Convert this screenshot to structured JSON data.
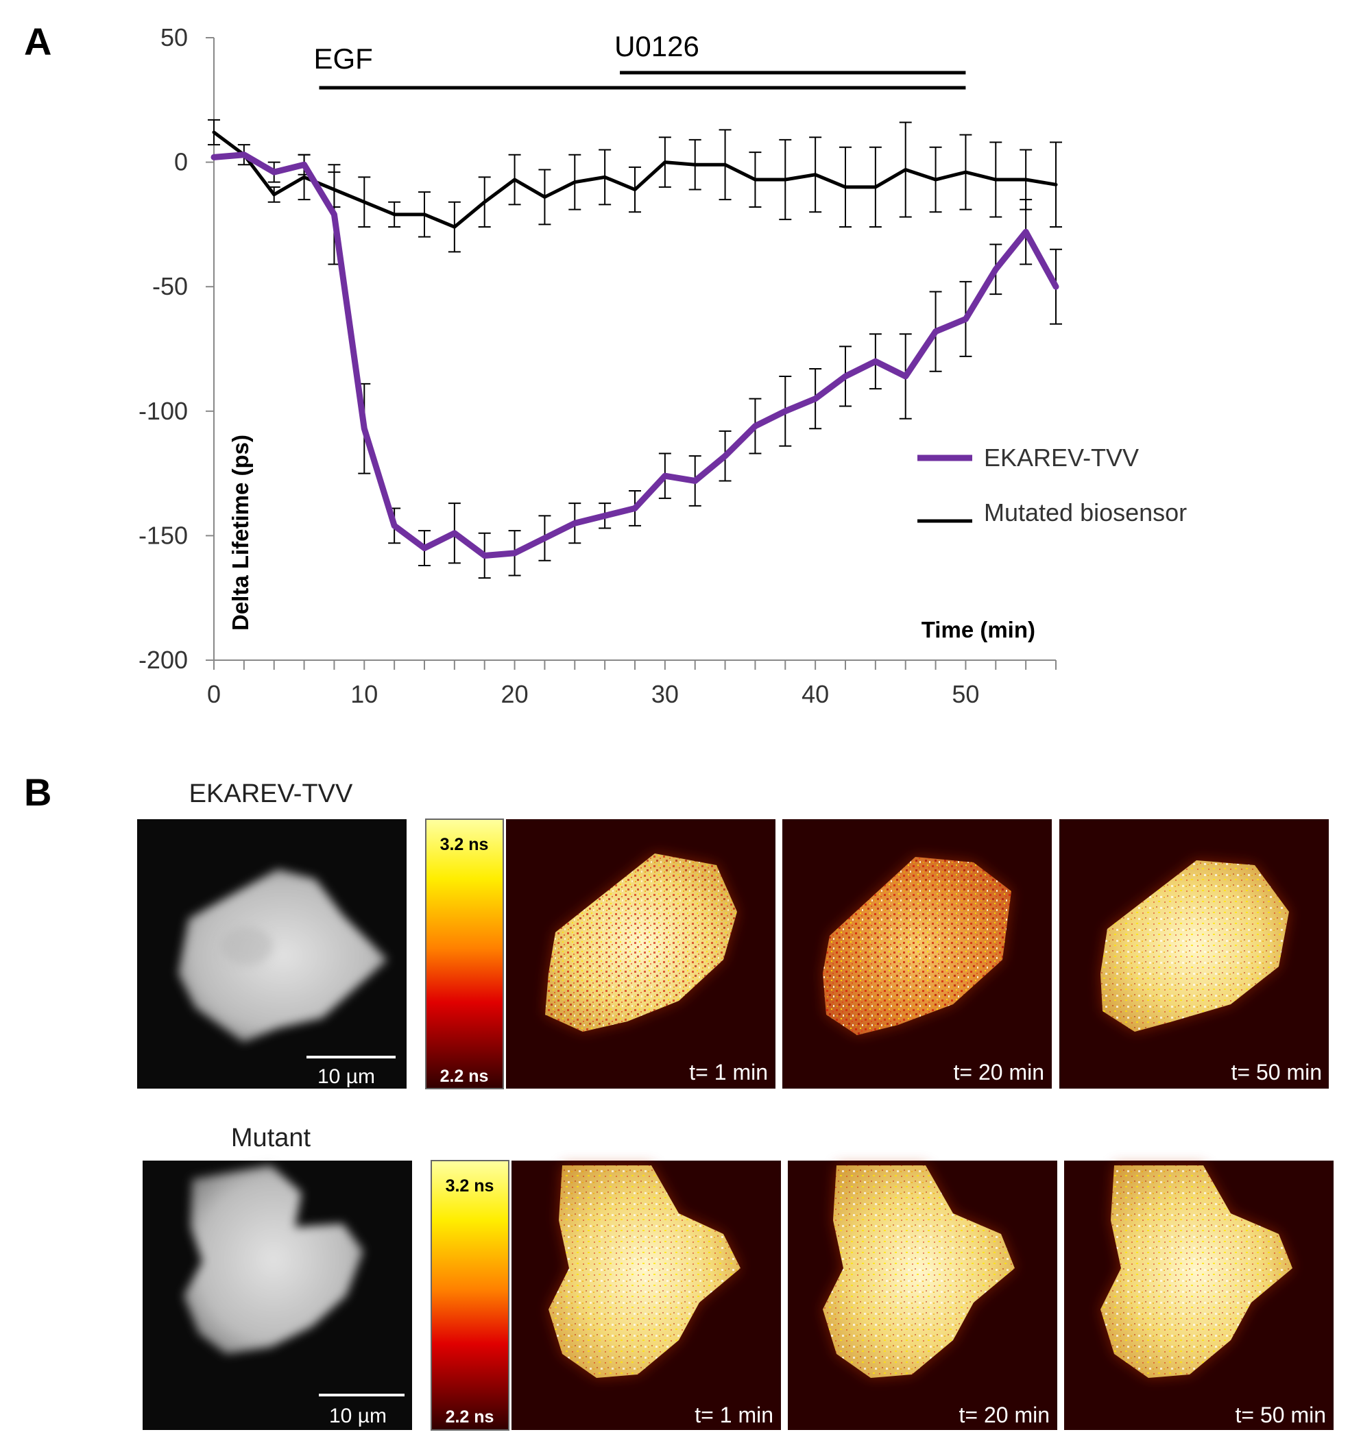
{
  "panel_a": {
    "label": "A",
    "treatments": [
      {
        "name": "EGF",
        "start": 7,
        "end": 50
      },
      {
        "name": "U0126",
        "start": 27,
        "end": 50
      }
    ]
  },
  "panel_b": {
    "label": "B",
    "rows": [
      {
        "title": "EKAREV-TVV",
        "scale_bar": "10 µm",
        "colorbar": {
          "max": "3.2 ns",
          "min": "2.2 ns"
        },
        "timepoints": [
          "t= 1 min",
          "t= 20 min",
          "t= 50 min"
        ]
      },
      {
        "title": "Mutant",
        "scale_bar": "10 µm",
        "colorbar": {
          "max": "3.2 ns",
          "min": "2.2 ns"
        },
        "timepoints": [
          "t= 1 min",
          "t= 20 min",
          "t= 50 min"
        ]
      }
    ]
  },
  "chart_data": {
    "type": "line",
    "title": "",
    "xlabel": "Time (min)",
    "ylabel": "Delta Lifetime (ps)",
    "xlim": [
      0,
      56
    ],
    "ylim": [
      -200,
      50
    ],
    "xticks": [
      0,
      10,
      20,
      30,
      40,
      50
    ],
    "yticks": [
      50,
      0,
      -50,
      -100,
      -150,
      -200
    ],
    "legend": "right",
    "x": [
      0,
      2,
      4,
      6,
      8,
      10,
      12,
      14,
      16,
      18,
      20,
      22,
      24,
      26,
      28,
      30,
      32,
      34,
      36,
      38,
      40,
      42,
      44,
      46,
      48,
      50,
      52,
      54,
      56
    ],
    "series": [
      {
        "name": "EKAREV-TVV",
        "color": "#7030a0",
        "values": [
          2,
          3,
          -4,
          -1,
          -21,
          -107,
          -146,
          -155,
          -149,
          -158,
          -157,
          -151,
          -145,
          -142,
          -139,
          -126,
          -128,
          -118,
          -106,
          -100,
          -95,
          -86,
          -80,
          -86,
          -68,
          -63,
          -43,
          -28,
          -50
        ],
        "errors": [
          0,
          0,
          4,
          4,
          20,
          18,
          7,
          7,
          12,
          9,
          9,
          9,
          8,
          5,
          7,
          9,
          10,
          10,
          11,
          14,
          12,
          12,
          11,
          17,
          16,
          15,
          10,
          13,
          15
        ]
      },
      {
        "name": "Mutated biosensor",
        "color": "#000000",
        "values": [
          12,
          3,
          -13,
          -6,
          -11,
          -16,
          -21,
          -21,
          -26,
          -16,
          -7,
          -14,
          -8,
          -6,
          -11,
          0,
          -1,
          -1,
          -7,
          -7,
          -5,
          -10,
          -10,
          -3,
          -7,
          -4,
          -7,
          -7,
          -9
        ],
        "errors": [
          5,
          4,
          3,
          9,
          7,
          10,
          5,
          9,
          10,
          10,
          10,
          11,
          11,
          11,
          9,
          10,
          10,
          14,
          11,
          16,
          15,
          16,
          16,
          19,
          13,
          15,
          15,
          12,
          17
        ]
      }
    ]
  }
}
